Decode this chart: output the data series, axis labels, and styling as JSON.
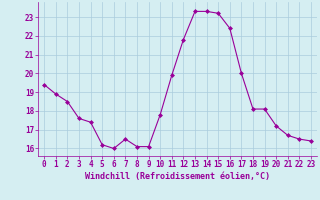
{
  "x": [
    0,
    1,
    2,
    3,
    4,
    5,
    6,
    7,
    8,
    9,
    10,
    11,
    12,
    13,
    14,
    15,
    16,
    17,
    18,
    19,
    20,
    21,
    22,
    23
  ],
  "y": [
    19.4,
    18.9,
    18.5,
    17.6,
    17.4,
    16.2,
    16.0,
    16.5,
    16.1,
    16.1,
    17.8,
    19.9,
    21.8,
    23.3,
    23.3,
    23.2,
    22.4,
    20.0,
    18.1,
    18.1,
    17.2,
    16.7,
    16.5,
    16.4
  ],
  "line_color": "#990099",
  "marker": "D",
  "marker_size": 2.0,
  "bg_color": "#d5eef2",
  "grid_color": "#aaccdd",
  "xlabel": "Windchill (Refroidissement éolien,°C)",
  "xlabel_color": "#990099",
  "tick_color": "#990099",
  "ylim": [
    15.6,
    23.8
  ],
  "xlim": [
    -0.5,
    23.5
  ],
  "yticks": [
    16,
    17,
    18,
    19,
    20,
    21,
    22,
    23
  ],
  "xticks": [
    0,
    1,
    2,
    3,
    4,
    5,
    6,
    7,
    8,
    9,
    10,
    11,
    12,
    13,
    14,
    15,
    16,
    17,
    18,
    19,
    20,
    21,
    22,
    23
  ],
  "tick_fontsize": 5.5,
  "xlabel_fontsize": 6.0
}
